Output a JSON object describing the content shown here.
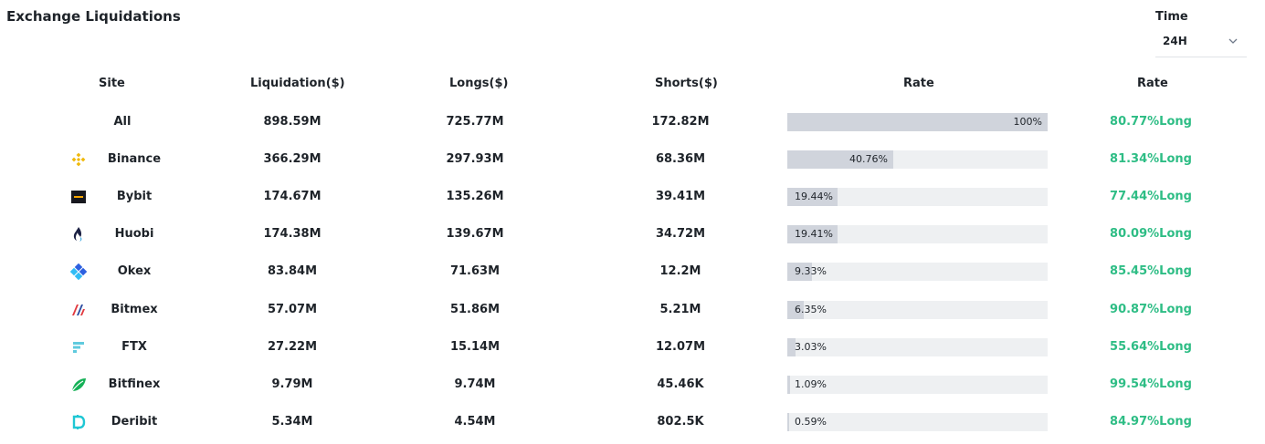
{
  "title": "Exchange Liquidations",
  "time": {
    "label": "Time",
    "value": "24H"
  },
  "headers": {
    "site": "Site",
    "liquidation": "Liquidation($)",
    "longs": "Longs($)",
    "shorts": "Shorts($)",
    "rate_bar": "Rate",
    "rate": "Rate"
  },
  "rows": [
    {
      "site": "All",
      "icon": "none",
      "liquidation": "898.59M",
      "longs": "725.77M",
      "shorts": "172.82M",
      "share_label": "100%",
      "share": 100,
      "rate": "80.77%Long"
    },
    {
      "site": "Binance",
      "icon": "binance-icon",
      "liquidation": "366.29M",
      "longs": "297.93M",
      "shorts": "68.36M",
      "share_label": "40.76%",
      "share": 40.76,
      "rate": "81.34%Long"
    },
    {
      "site": "Bybit",
      "icon": "bybit-icon",
      "liquidation": "174.67M",
      "longs": "135.26M",
      "shorts": "39.41M",
      "share_label": "19.44%",
      "share": 19.44,
      "rate": "77.44%Long"
    },
    {
      "site": "Huobi",
      "icon": "huobi-icon",
      "liquidation": "174.38M",
      "longs": "139.67M",
      "shorts": "34.72M",
      "share_label": "19.41%",
      "share": 19.41,
      "rate": "80.09%Long"
    },
    {
      "site": "Okex",
      "icon": "okex-icon",
      "liquidation": "83.84M",
      "longs": "71.63M",
      "shorts": "12.2M",
      "share_label": "9.33%",
      "share": 9.33,
      "rate": "85.45%Long"
    },
    {
      "site": "Bitmex",
      "icon": "bitmex-icon",
      "liquidation": "57.07M",
      "longs": "51.86M",
      "shorts": "5.21M",
      "share_label": "6.35%",
      "share": 6.35,
      "rate": "90.87%Long"
    },
    {
      "site": "FTX",
      "icon": "ftx-icon",
      "liquidation": "27.22M",
      "longs": "15.14M",
      "shorts": "12.07M",
      "share_label": "3.03%",
      "share": 3.03,
      "rate": "55.64%Long"
    },
    {
      "site": "Bitfinex",
      "icon": "bitfinex-icon",
      "liquidation": "9.79M",
      "longs": "9.74M",
      "shorts": "45.46K",
      "share_label": "1.09%",
      "share": 1.09,
      "rate": "99.54%Long"
    },
    {
      "site": "Deribit",
      "icon": "deribit-icon",
      "liquidation": "5.34M",
      "longs": "4.54M",
      "shorts": "802.5K",
      "share_label": "0.59%",
      "share": 0.59,
      "rate": "84.97%Long"
    }
  ],
  "colors": {
    "long": "#2ebd85",
    "bar_fill": "#d0d4dc",
    "bar_track": "#eef0f2"
  }
}
